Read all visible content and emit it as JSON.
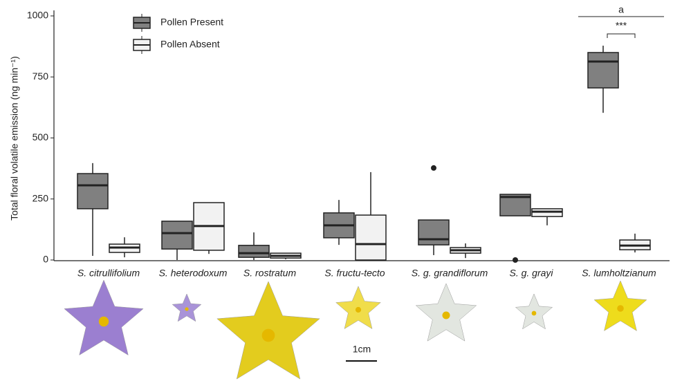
{
  "chart_data": {
    "type": "box",
    "y_label": "Total floral volatile emission (ng min⁻¹)",
    "categories": [
      "S. citrullifolium",
      "S. heterodoxum",
      "S. rostratum",
      "S. fructu-tecto",
      "S. g. grandiflorum",
      "S. g. grayi",
      "S. lumholtzianum"
    ],
    "series": [
      {
        "name": "Pollen Present",
        "color": "#808080",
        "min": [
          17,
          0,
          0,
          62,
          20,
          181,
          603
        ],
        "q1": [
          210,
          45,
          11,
          91,
          62,
          181,
          705
        ],
        "median": [
          306,
          110,
          28,
          142,
          85,
          258,
          813
        ],
        "q3": [
          354,
          159,
          60,
          193,
          164,
          269,
          850
        ],
        "max": [
          397,
          159,
          113,
          246,
          164,
          269,
          878
        ],
        "outliers": [
          [],
          [],
          [],
          [],
          [
            377
          ],
          [
            0
          ],
          []
        ]
      },
      {
        "name": "Pollen Absent",
        "color": "#f2f2f2",
        "min": [
          11,
          25,
          3,
          0,
          8,
          142,
          31
        ],
        "q1": [
          31,
          40,
          8,
          0,
          28,
          178,
          42
        ],
        "median": [
          51,
          139,
          17,
          65,
          40,
          198,
          59
        ],
        "q3": [
          65,
          235,
          28,
          184,
          51,
          210,
          82
        ],
        "max": [
          93,
          235,
          28,
          360,
          68,
          210,
          108
        ],
        "outliers": [
          [],
          [],
          [],
          [],
          [],
          [],
          []
        ]
      }
    ],
    "ylim": [
      0,
      1000
    ],
    "yticks": [
      0,
      250,
      500,
      750,
      1000
    ],
    "annotations": [
      "a",
      "***"
    ],
    "scale_bar_label": "1cm"
  }
}
